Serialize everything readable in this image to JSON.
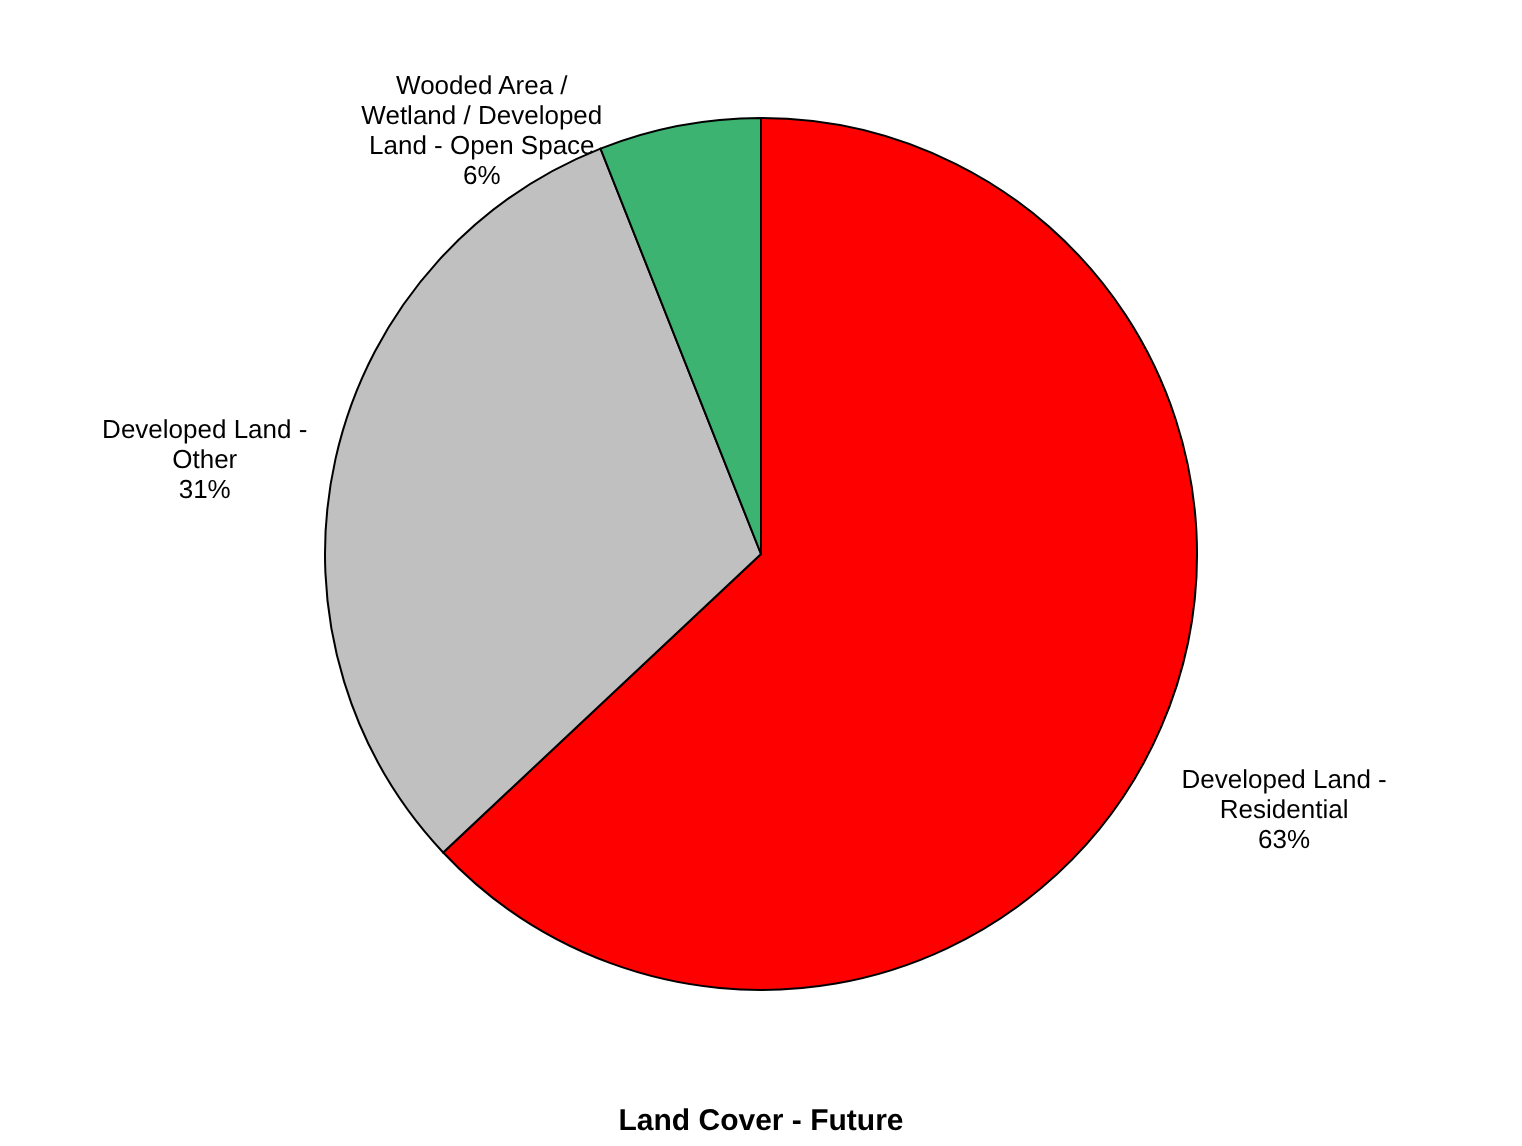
{
  "chart_data": {
    "type": "pie",
    "title": "Land Cover - Future",
    "categories": [
      "Developed Land - Residential",
      "Developed Land - Other",
      "Wooded Area / Wetland / Developed Land - Open Space"
    ],
    "values": [
      63,
      31,
      6
    ],
    "value_labels": [
      "63%",
      "31%",
      "6%"
    ],
    "colors": [
      "#ff0000",
      "#c0c0c0",
      "#3cb371"
    ],
    "legend": false
  }
}
